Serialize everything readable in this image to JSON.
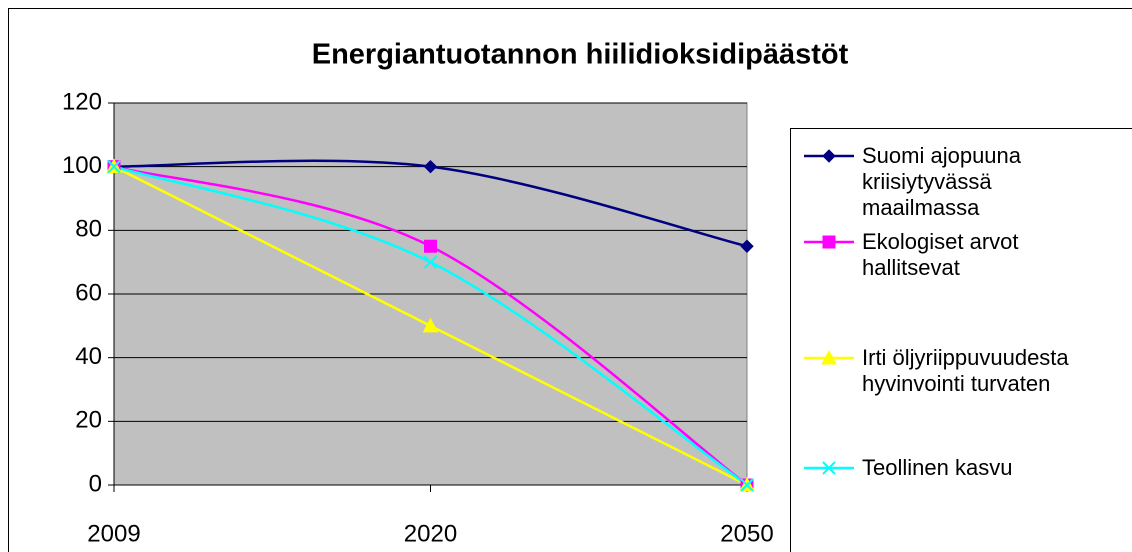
{
  "chart_data": {
    "type": "line",
    "title": "Energiantuotannon hiilidioksidipäästöt",
    "categories": [
      "2009",
      "2020",
      "2050"
    ],
    "series": [
      {
        "name": "Suomi ajopuuna kriisiytyvässä maailmassa",
        "color": "#000080",
        "marker": "diamond",
        "smooth": true,
        "values": [
          100,
          100,
          75
        ]
      },
      {
        "name": "Ekologiset arvot hallitsevat",
        "color": "#FF00FF",
        "marker": "square",
        "smooth": true,
        "values": [
          100,
          75,
          0
        ]
      },
      {
        "name": "Irti öljyriippuvuudesta hyvinvointi turvaten",
        "color": "#FFFF00",
        "marker": "triangle",
        "smooth": false,
        "values": [
          100,
          50,
          0
        ]
      },
      {
        "name": "Teollinen kasvu",
        "color": "#00FFFF",
        "marker": "x",
        "smooth": true,
        "values": [
          100,
          70,
          0
        ]
      }
    ],
    "ylim": [
      0,
      120
    ],
    "yticks": [
      0,
      20,
      40,
      60,
      80,
      100,
      120
    ],
    "grid": true,
    "legend": "right"
  }
}
